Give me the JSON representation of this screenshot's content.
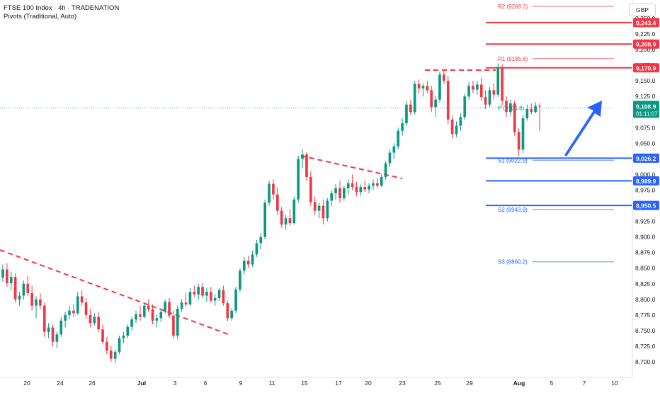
{
  "header": {
    "title": "FTSE 100 Index · 4h · TRADENATION",
    "subtitle": "Pivots (Traditional, Auto)"
  },
  "currency": "GBP",
  "colors": {
    "up": "#089981",
    "down": "#f23645",
    "resistance": "#f23645",
    "support": "#2962ff",
    "pivot": "#089981",
    "arrow": "#2962ff"
  },
  "chart_data": {
    "type": "candlestick",
    "ylim": [
      8690,
      9275
    ],
    "y_ticks": [
      "9,250.0",
      "9,225.0",
      "9,200.0",
      "9,175.0",
      "9,150.0",
      "9,125.0",
      "9,100.0",
      "9,075.0",
      "9,050.0",
      "9,025.0",
      "9,000.0",
      "8,975.0",
      "8,950.0",
      "8,925.0",
      "8,900.0",
      "8,875.0",
      "8,850.0",
      "8,825.0",
      "8,800.0",
      "8,775.0",
      "8,750.0",
      "8,725.0",
      "8,700.0"
    ],
    "x_ticks": [
      "20",
      "24",
      "26",
      "Jul",
      "3",
      "6",
      "9",
      "11",
      "15",
      "17",
      "20",
      "23",
      "25",
      "29",
      "Aug",
      "5",
      "7",
      "10"
    ],
    "current_price": {
      "value": "9,108.9",
      "countdown": "01:11:07"
    },
    "horizontal_levels": [
      {
        "label": "9,243.4",
        "value": 9243.4,
        "kind": "resistance"
      },
      {
        "label": "9,208.9",
        "value": 9208.9,
        "kind": "resistance"
      },
      {
        "label": "9,170.9",
        "value": 9170.9,
        "kind": "resistance"
      },
      {
        "label": "9,026.2",
        "value": 9026.2,
        "kind": "support"
      },
      {
        "label": "8,989.9",
        "value": 8989.9,
        "kind": "support"
      },
      {
        "label": "8,950.5",
        "value": 8950.5,
        "kind": "support"
      }
    ],
    "pivots": [
      {
        "label": "R2 (9269.3)",
        "value": 9269.3,
        "kind": "resistance"
      },
      {
        "label": "R1 (9185.6)",
        "value": 9185.6,
        "kind": "resistance"
      },
      {
        "label": "P (9106.8)",
        "value": 9106.8,
        "kind": "pivot"
      },
      {
        "label": "S1 (9022.9)",
        "value": 9022.9,
        "kind": "support"
      },
      {
        "label": "S2 (8943.9)",
        "value": 8943.9,
        "kind": "support"
      },
      {
        "label": "S3 (8860.2)",
        "value": 8860.2,
        "kind": "support"
      }
    ],
    "candles": [
      {
        "o": 8835,
        "h": 8856,
        "l": 8828,
        "c": 8848
      },
      {
        "o": 8848,
        "h": 8858,
        "l": 8820,
        "c": 8826
      },
      {
        "o": 8826,
        "h": 8844,
        "l": 8815,
        "c": 8836
      },
      {
        "o": 8836,
        "h": 8842,
        "l": 8795,
        "c": 8800
      },
      {
        "o": 8800,
        "h": 8812,
        "l": 8790,
        "c": 8806
      },
      {
        "o": 8806,
        "h": 8830,
        "l": 8800,
        "c": 8825
      },
      {
        "o": 8825,
        "h": 8838,
        "l": 8805,
        "c": 8810
      },
      {
        "o": 8810,
        "h": 8822,
        "l": 8782,
        "c": 8790
      },
      {
        "o": 8790,
        "h": 8805,
        "l": 8770,
        "c": 8800
      },
      {
        "o": 8800,
        "h": 8810,
        "l": 8784,
        "c": 8790
      },
      {
        "o": 8790,
        "h": 8795,
        "l": 8740,
        "c": 8748
      },
      {
        "o": 8748,
        "h": 8762,
        "l": 8738,
        "c": 8755
      },
      {
        "o": 8755,
        "h": 8760,
        "l": 8725,
        "c": 8732
      },
      {
        "o": 8732,
        "h": 8748,
        "l": 8722,
        "c": 8744
      },
      {
        "o": 8744,
        "h": 8772,
        "l": 8740,
        "c": 8766
      },
      {
        "o": 8766,
        "h": 8780,
        "l": 8755,
        "c": 8775
      },
      {
        "o": 8775,
        "h": 8790,
        "l": 8768,
        "c": 8782
      },
      {
        "o": 8782,
        "h": 8792,
        "l": 8772,
        "c": 8778
      },
      {
        "o": 8778,
        "h": 8812,
        "l": 8775,
        "c": 8805
      },
      {
        "o": 8805,
        "h": 8815,
        "l": 8790,
        "c": 8795
      },
      {
        "o": 8795,
        "h": 8802,
        "l": 8770,
        "c": 8775
      },
      {
        "o": 8775,
        "h": 8785,
        "l": 8755,
        "c": 8762
      },
      {
        "o": 8762,
        "h": 8778,
        "l": 8758,
        "c": 8772
      },
      {
        "o": 8772,
        "h": 8780,
        "l": 8748,
        "c": 8752
      },
      {
        "o": 8752,
        "h": 8760,
        "l": 8728,
        "c": 8732
      },
      {
        "o": 8732,
        "h": 8740,
        "l": 8712,
        "c": 8718
      },
      {
        "o": 8718,
        "h": 8726,
        "l": 8700,
        "c": 8705
      },
      {
        "o": 8705,
        "h": 8720,
        "l": 8698,
        "c": 8716
      },
      {
        "o": 8716,
        "h": 8742,
        "l": 8712,
        "c": 8738
      },
      {
        "o": 8738,
        "h": 8748,
        "l": 8730,
        "c": 8742
      },
      {
        "o": 8742,
        "h": 8760,
        "l": 8738,
        "c": 8756
      },
      {
        "o": 8756,
        "h": 8772,
        "l": 8750,
        "c": 8768
      },
      {
        "o": 8768,
        "h": 8782,
        "l": 8762,
        "c": 8776
      },
      {
        "o": 8776,
        "h": 8790,
        "l": 8766,
        "c": 8772
      },
      {
        "o": 8772,
        "h": 8795,
        "l": 8770,
        "c": 8790
      },
      {
        "o": 8790,
        "h": 8800,
        "l": 8780,
        "c": 8784
      },
      {
        "o": 8784,
        "h": 8792,
        "l": 8760,
        "c": 8766
      },
      {
        "o": 8766,
        "h": 8776,
        "l": 8755,
        "c": 8770
      },
      {
        "o": 8770,
        "h": 8785,
        "l": 8764,
        "c": 8780
      },
      {
        "o": 8780,
        "h": 8800,
        "l": 8778,
        "c": 8796
      },
      {
        "o": 8796,
        "h": 8802,
        "l": 8770,
        "c": 8774
      },
      {
        "o": 8774,
        "h": 8782,
        "l": 8738,
        "c": 8742
      },
      {
        "o": 8742,
        "h": 8790,
        "l": 8736,
        "c": 8785
      },
      {
        "o": 8785,
        "h": 8800,
        "l": 8780,
        "c": 8795
      },
      {
        "o": 8795,
        "h": 8810,
        "l": 8788,
        "c": 8792
      },
      {
        "o": 8792,
        "h": 8818,
        "l": 8790,
        "c": 8812
      },
      {
        "o": 8812,
        "h": 8822,
        "l": 8804,
        "c": 8808
      },
      {
        "o": 8808,
        "h": 8825,
        "l": 8800,
        "c": 8820
      },
      {
        "o": 8820,
        "h": 8826,
        "l": 8802,
        "c": 8806
      },
      {
        "o": 8806,
        "h": 8818,
        "l": 8796,
        "c": 8812
      },
      {
        "o": 8812,
        "h": 8820,
        "l": 8795,
        "c": 8798
      },
      {
        "o": 8798,
        "h": 8808,
        "l": 8790,
        "c": 8802
      },
      {
        "o": 8802,
        "h": 8818,
        "l": 8798,
        "c": 8815
      },
      {
        "o": 8815,
        "h": 8822,
        "l": 8790,
        "c": 8794
      },
      {
        "o": 8794,
        "h": 8798,
        "l": 8765,
        "c": 8770
      },
      {
        "o": 8770,
        "h": 8786,
        "l": 8766,
        "c": 8782
      },
      {
        "o": 8782,
        "h": 8820,
        "l": 8778,
        "c": 8816
      },
      {
        "o": 8816,
        "h": 8850,
        "l": 8812,
        "c": 8846
      },
      {
        "o": 8846,
        "h": 8868,
        "l": 8840,
        "c": 8862
      },
      {
        "o": 8862,
        "h": 8870,
        "l": 8850,
        "c": 8856
      },
      {
        "o": 8856,
        "h": 8878,
        "l": 8852,
        "c": 8872
      },
      {
        "o": 8872,
        "h": 8895,
        "l": 8868,
        "c": 8890
      },
      {
        "o": 8890,
        "h": 8906,
        "l": 8880,
        "c": 8900
      },
      {
        "o": 8900,
        "h": 8960,
        "l": 8896,
        "c": 8955
      },
      {
        "o": 8955,
        "h": 8990,
        "l": 8950,
        "c": 8985
      },
      {
        "o": 8985,
        "h": 8992,
        "l": 8960,
        "c": 8968
      },
      {
        "o": 8968,
        "h": 8980,
        "l": 8935,
        "c": 8942
      },
      {
        "o": 8942,
        "h": 8948,
        "l": 8915,
        "c": 8920
      },
      {
        "o": 8920,
        "h": 8935,
        "l": 8912,
        "c": 8930
      },
      {
        "o": 8930,
        "h": 8945,
        "l": 8918,
        "c": 8922
      },
      {
        "o": 8922,
        "h": 8965,
        "l": 8920,
        "c": 8960
      },
      {
        "o": 8960,
        "h": 9030,
        "l": 8955,
        "c": 9025
      },
      {
        "o": 9025,
        "h": 9040,
        "l": 9010,
        "c": 9032
      },
      {
        "o": 9032,
        "h": 9036,
        "l": 8990,
        "c": 8996
      },
      {
        "o": 8996,
        "h": 9005,
        "l": 8950,
        "c": 8956
      },
      {
        "o": 8956,
        "h": 8965,
        "l": 8935,
        "c": 8942
      },
      {
        "o": 8942,
        "h": 8955,
        "l": 8930,
        "c": 8950
      },
      {
        "o": 8950,
        "h": 8960,
        "l": 8920,
        "c": 8930
      },
      {
        "o": 8930,
        "h": 8962,
        "l": 8925,
        "c": 8958
      },
      {
        "o": 8958,
        "h": 8975,
        "l": 8950,
        "c": 8970
      },
      {
        "o": 8970,
        "h": 8985,
        "l": 8960,
        "c": 8978
      },
      {
        "o": 8978,
        "h": 8990,
        "l": 8955,
        "c": 8962
      },
      {
        "o": 8962,
        "h": 8982,
        "l": 8958,
        "c": 8978
      },
      {
        "o": 8978,
        "h": 8992,
        "l": 8968,
        "c": 8986
      },
      {
        "o": 8986,
        "h": 9000,
        "l": 8975,
        "c": 8980
      },
      {
        "o": 8980,
        "h": 8988,
        "l": 8965,
        "c": 8972
      },
      {
        "o": 8972,
        "h": 8984,
        "l": 8966,
        "c": 8980
      },
      {
        "o": 8980,
        "h": 8990,
        "l": 8972,
        "c": 8976
      },
      {
        "o": 8976,
        "h": 8986,
        "l": 8970,
        "c": 8982
      },
      {
        "o": 8982,
        "h": 8992,
        "l": 8975,
        "c": 8986
      },
      {
        "o": 8986,
        "h": 8994,
        "l": 8978,
        "c": 8982
      },
      {
        "o": 8982,
        "h": 9000,
        "l": 8980,
        "c": 8996
      },
      {
        "o": 8996,
        "h": 9022,
        "l": 8992,
        "c": 9018
      },
      {
        "o": 9018,
        "h": 9040,
        "l": 9012,
        "c": 9035
      },
      {
        "o": 9035,
        "h": 9050,
        "l": 9025,
        "c": 9045
      },
      {
        "o": 9045,
        "h": 9075,
        "l": 9040,
        "c": 9070
      },
      {
        "o": 9070,
        "h": 9090,
        "l": 9062,
        "c": 9082
      },
      {
        "o": 9082,
        "h": 9118,
        "l": 9078,
        "c": 9112
      },
      {
        "o": 9112,
        "h": 9120,
        "l": 9095,
        "c": 9100
      },
      {
        "o": 9100,
        "h": 9150,
        "l": 9096,
        "c": 9145
      },
      {
        "o": 9145,
        "h": 9152,
        "l": 9130,
        "c": 9138
      },
      {
        "o": 9138,
        "h": 9146,
        "l": 9125,
        "c": 9142
      },
      {
        "o": 9142,
        "h": 9150,
        "l": 9130,
        "c": 9135
      },
      {
        "o": 9135,
        "h": 9142,
        "l": 9100,
        "c": 9108
      },
      {
        "o": 9108,
        "h": 9126,
        "l": 9092,
        "c": 9120
      },
      {
        "o": 9120,
        "h": 9165,
        "l": 9115,
        "c": 9160
      },
      {
        "o": 9160,
        "h": 9168,
        "l": 9145,
        "c": 9150
      },
      {
        "o": 9150,
        "h": 9158,
        "l": 9080,
        "c": 9088
      },
      {
        "o": 9088,
        "h": 9095,
        "l": 9058,
        "c": 9065
      },
      {
        "o": 9065,
        "h": 9085,
        "l": 9060,
        "c": 9078
      },
      {
        "o": 9078,
        "h": 9098,
        "l": 9070,
        "c": 9092
      },
      {
        "o": 9092,
        "h": 9130,
        "l": 9088,
        "c": 9125
      },
      {
        "o": 9125,
        "h": 9148,
        "l": 9120,
        "c": 9142
      },
      {
        "o": 9142,
        "h": 9150,
        "l": 9130,
        "c": 9136
      },
      {
        "o": 9136,
        "h": 9150,
        "l": 9128,
        "c": 9144
      },
      {
        "o": 9144,
        "h": 9155,
        "l": 9118,
        "c": 9124
      },
      {
        "o": 9124,
        "h": 9135,
        "l": 9105,
        "c": 9112
      },
      {
        "o": 9112,
        "h": 9140,
        "l": 9108,
        "c": 9135
      },
      {
        "o": 9135,
        "h": 9145,
        "l": 9120,
        "c": 9128
      },
      {
        "o": 9128,
        "h": 9178,
        "l": 9124,
        "c": 9172
      },
      {
        "o": 9172,
        "h": 9176,
        "l": 9110,
        "c": 9118
      },
      {
        "o": 9118,
        "h": 9126,
        "l": 9092,
        "c": 9100
      },
      {
        "o": 9100,
        "h": 9120,
        "l": 9094,
        "c": 9114
      },
      {
        "o": 9114,
        "h": 9118,
        "l": 9062,
        "c": 9068
      },
      {
        "o": 9068,
        "h": 9074,
        "l": 9030,
        "c": 9040
      },
      {
        "o": 9040,
        "h": 9095,
        "l": 9034,
        "c": 9090
      },
      {
        "o": 9090,
        "h": 9112,
        "l": 9086,
        "c": 9105
      },
      {
        "o": 9105,
        "h": 9114,
        "l": 9096,
        "c": 9100
      },
      {
        "o": 9100,
        "h": 9116,
        "l": 9098,
        "c": 9110
      },
      {
        "o": 9110,
        "h": 9114,
        "l": 9070,
        "c": 9108.9
      }
    ]
  }
}
